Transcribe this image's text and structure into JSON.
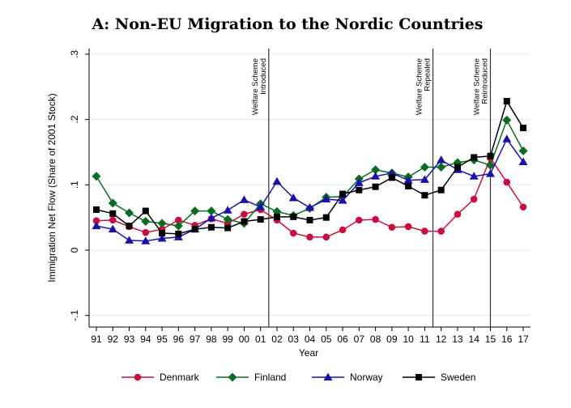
{
  "chart_data": {
    "type": "line",
    "title": "A: Non-EU Migration to the Nordic Countries",
    "xlabel": "Year",
    "ylabel": "Immigration Net Flow (Share of 2001 Stock)",
    "ylim": [
      -0.1,
      0.3
    ],
    "yticks": [
      -0.1,
      0,
      0.1,
      0.2,
      0.3
    ],
    "ytick_labels": [
      "-.1",
      "0",
      ".1",
      ".2",
      ".3"
    ],
    "x": [
      "91",
      "92",
      "93",
      "94",
      "95",
      "96",
      "97",
      "98",
      "99",
      "00",
      "01",
      "02",
      "03",
      "04",
      "05",
      "06",
      "07",
      "08",
      "09",
      "10",
      "11",
      "12",
      "13",
      "14",
      "15",
      "16",
      "17"
    ],
    "grid": true,
    "legend": "bottom",
    "series": [
      {
        "name": "Denmark",
        "color": "#c8103e",
        "marker": "circle",
        "values": [
          0.045,
          0.046,
          0.036,
          0.027,
          0.032,
          0.046,
          0.038,
          0.048,
          0.041,
          0.055,
          0.062,
          0.046,
          0.026,
          0.02,
          0.02,
          0.031,
          0.046,
          0.047,
          0.035,
          0.036,
          0.029,
          0.029,
          0.055,
          0.078,
          0.141,
          0.104,
          0.066
        ]
      },
      {
        "name": "Finland",
        "color": "#0b6b23",
        "marker": "diamond",
        "values": [
          0.113,
          0.072,
          0.057,
          0.044,
          0.041,
          0.037,
          0.06,
          0.06,
          0.047,
          0.041,
          0.071,
          0.059,
          0.053,
          0.064,
          0.081,
          0.082,
          0.109,
          0.123,
          0.118,
          0.112,
          0.127,
          0.127,
          0.134,
          0.138,
          0.13,
          0.199,
          0.152
        ]
      },
      {
        "name": "Norway",
        "color": "#1a12a8",
        "marker": "triangle",
        "values": [
          0.037,
          0.032,
          0.015,
          0.014,
          0.018,
          0.02,
          0.032,
          0.049,
          0.061,
          0.077,
          0.066,
          0.105,
          0.08,
          0.065,
          0.078,
          0.076,
          0.103,
          0.113,
          0.118,
          0.107,
          0.108,
          0.138,
          0.123,
          0.113,
          0.117,
          0.17,
          0.135
        ]
      },
      {
        "name": "Sweden",
        "color": "#000000",
        "marker": "square",
        "values": [
          0.062,
          0.056,
          0.037,
          0.06,
          0.026,
          0.025,
          0.032,
          0.035,
          0.034,
          0.044,
          0.047,
          0.051,
          0.051,
          0.046,
          0.05,
          0.086,
          0.092,
          0.097,
          0.111,
          0.098,
          0.084,
          0.092,
          0.127,
          0.142,
          0.144,
          0.228,
          0.187
        ]
      }
    ],
    "annotations": [
      {
        "at": "01.5",
        "line1": "Welfare Scheme",
        "line2": "Introduced"
      },
      {
        "at": "11.5",
        "line1": "Welfare Scheme",
        "line2": "Repealed"
      },
      {
        "at": "15",
        "line1": "Welfare Scheme",
        "line2": "Reintroduced"
      }
    ]
  }
}
